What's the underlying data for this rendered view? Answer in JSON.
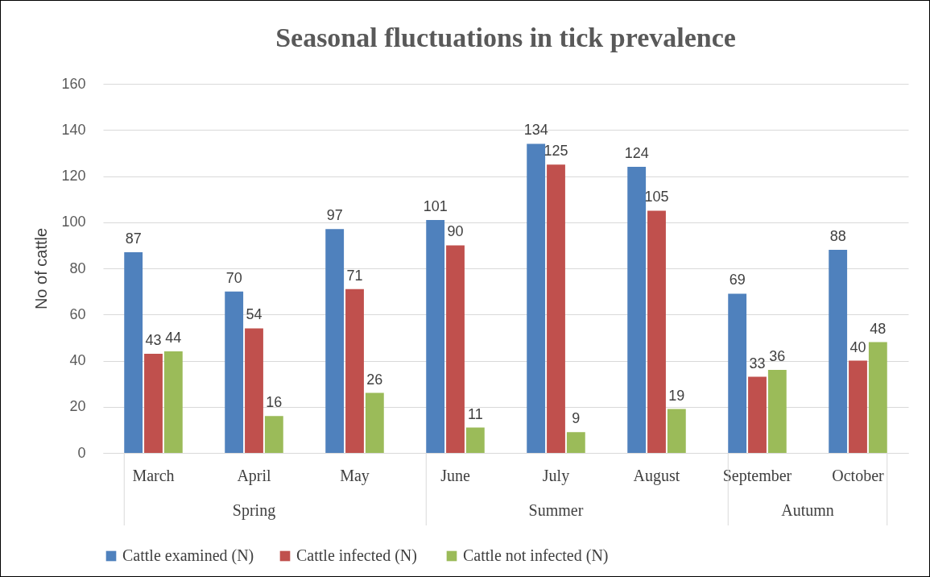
{
  "chart_data": {
    "type": "bar",
    "title": "Seasonal fluctuations in tick prevalence",
    "ylabel": "No of cattle",
    "categories": [
      "March",
      "April",
      "May",
      "June",
      "July",
      "August",
      "September",
      "October"
    ],
    "series": [
      {
        "name": "Cattle examined (N)",
        "color": "#4f81bd",
        "values": [
          87,
          70,
          97,
          101,
          134,
          124,
          69,
          88
        ]
      },
      {
        "name": "Cattle infected  (N)",
        "color": "#c0504d",
        "values": [
          43,
          54,
          71,
          90,
          125,
          105,
          33,
          40
        ]
      },
      {
        "name": "Cattle not infected (N)",
        "color": "#9bbb59",
        "values": [
          44,
          16,
          26,
          11,
          9,
          19,
          36,
          48
        ]
      }
    ],
    "annotations": [
      "Spring",
      "Summer",
      "Autumn"
    ],
    "ylim": [
      0,
      160
    ],
    "yticks": [
      0,
      20,
      40,
      60,
      80,
      100,
      120,
      140,
      160
    ],
    "grid": "y",
    "legend": "bottom",
    "data_labels": true
  }
}
